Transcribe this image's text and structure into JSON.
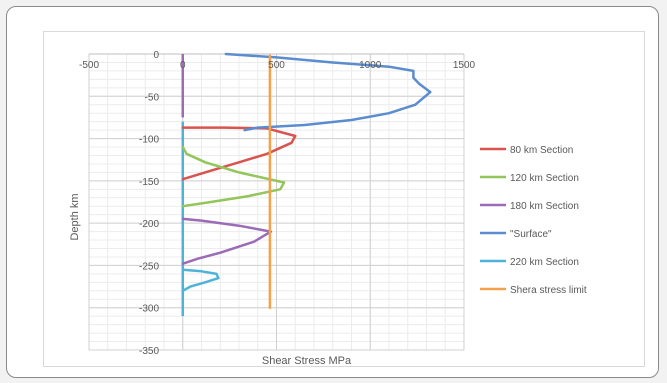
{
  "chart_data": {
    "type": "line",
    "title": "",
    "xlabel": "Shear Stress MPa",
    "ylabel": "Depth km",
    "xlim": [
      -500,
      1500
    ],
    "ylim": [
      -350,
      0
    ],
    "x_ticks": [
      "-500",
      "0",
      "500",
      "1000",
      "1500"
    ],
    "y_ticks": [
      "0",
      "-50",
      "-100",
      "-150",
      "-200",
      "-250",
      "-300",
      "-350"
    ],
    "grid": true,
    "legend_position": "right",
    "series": [
      {
        "name": "80 km Section",
        "color": "#d9534f",
        "points": [
          [
            0,
            -87
          ],
          [
            220,
            -87
          ],
          [
            450,
            -88
          ],
          [
            600,
            -97
          ],
          [
            580,
            -105
          ],
          [
            450,
            -118
          ],
          [
            300,
            -128
          ],
          [
            150,
            -138
          ],
          [
            0,
            -148
          ]
        ]
      },
      {
        "name": "120 km Section",
        "color": "#92c55a",
        "points": [
          [
            0,
            -110
          ],
          [
            20,
            -118
          ],
          [
            120,
            -128
          ],
          [
            300,
            -140
          ],
          [
            540,
            -152
          ],
          [
            520,
            -160
          ],
          [
            350,
            -168
          ],
          [
            150,
            -175
          ],
          [
            0,
            -180
          ]
        ]
      },
      {
        "name": "180 km Section",
        "color": "#9b6bb8",
        "points": [
          [
            0,
            -195
          ],
          [
            100,
            -197
          ],
          [
            300,
            -203
          ],
          [
            470,
            -210
          ],
          [
            380,
            -222
          ],
          [
            200,
            -235
          ],
          [
            80,
            -242
          ],
          [
            0,
            -248
          ]
        ]
      },
      {
        "name": "\"Surface\"",
        "color": "#5b8cd0",
        "points": [
          [
            230,
            0
          ],
          [
            500,
            -4
          ],
          [
            800,
            -10
          ],
          [
            1100,
            -15
          ],
          [
            1230,
            -20
          ],
          [
            1230,
            -28
          ],
          [
            1260,
            -35
          ],
          [
            1320,
            -45
          ],
          [
            1240,
            -60
          ],
          [
            1100,
            -70
          ],
          [
            900,
            -78
          ],
          [
            650,
            -84
          ],
          [
            400,
            -87
          ],
          [
            330,
            -90
          ]
        ]
      },
      {
        "name": "220 km Section",
        "color": "#4fb3d9",
        "points": [
          [
            0,
            -255
          ],
          [
            100,
            -257
          ],
          [
            180,
            -260
          ],
          [
            190,
            -265
          ],
          [
            120,
            -270
          ],
          [
            40,
            -275
          ],
          [
            0,
            -280
          ]
        ]
      },
      {
        "name": "Shera stress limit",
        "color": "#f5a04a",
        "points": [
          [
            465,
            -2
          ],
          [
            465,
            -300
          ]
        ]
      }
    ],
    "zero_line": {
      "color": "#4fb3d9",
      "segments": [
        {
          "color": "#9b6bb8",
          "from": 0,
          "to": -75
        },
        {
          "color": "#4fb3d9",
          "from": -80,
          "to": -310
        }
      ]
    }
  }
}
